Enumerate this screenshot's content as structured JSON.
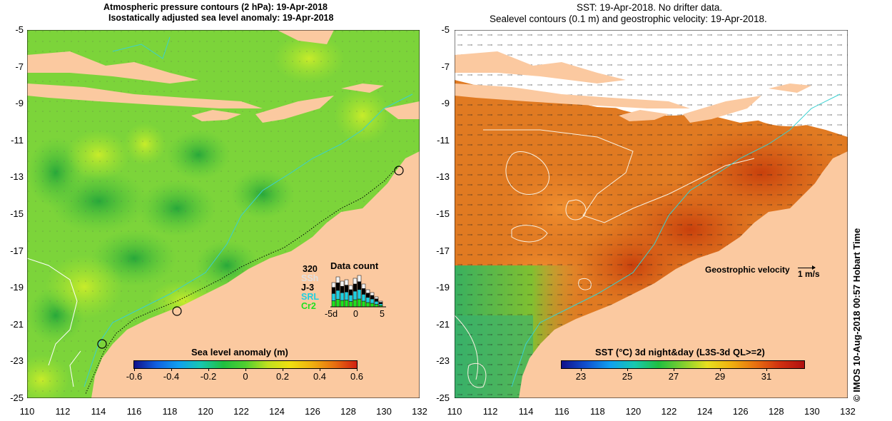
{
  "left": {
    "title_line1": "Atmospheric pressure contours (2 hPa): 19-Apr-2018",
    "title_line2": "Isostatically adjusted sea level anomaly: 19-Apr-2018",
    "colorbar_title": "Sea level anomaly (m)",
    "colorbar_ticks": [
      "-0.6",
      "-0.4",
      "-0.2",
      "0",
      "0.2",
      "0.4",
      "0.6"
    ],
    "data_count": {
      "title": "Data count",
      "max_label": "320",
      "legend": [
        "SSh",
        "J-3",
        "SRL",
        "Cr2"
      ],
      "legend_colors": [
        "#e0e0e0",
        "#000000",
        "#20d0e0",
        "#20e020"
      ],
      "x_ticks": [
        "-5d",
        "0",
        "5"
      ]
    }
  },
  "right": {
    "title_line1": "SST: 19-Apr-2018. No drifter data.",
    "title_line2": "Sealevel contours (0.1 m) and geostrophic velocity: 19-Apr-2018.",
    "colorbar_title": "SST (°C) 3d night&day (L3S-3d QL>=2)",
    "colorbar_ticks": [
      "23",
      "25",
      "27",
      "29",
      "31"
    ],
    "velocity_label": "Geostrophic velocity",
    "velocity_unit": "1 m/s"
  },
  "axes": {
    "y_ticks": [
      "-5",
      "-7",
      "-9",
      "-11",
      "-13",
      "-15",
      "-17",
      "-19",
      "-21",
      "-23",
      "-25"
    ],
    "x_ticks": [
      "110",
      "112",
      "114",
      "116",
      "118",
      "120",
      "122",
      "124",
      "126",
      "128",
      "130",
      "132"
    ]
  },
  "footer": "© IMOS 10-Aug-2018 00:57 Hobart Time",
  "colors": {
    "land": "#fbc9a0",
    "ocean_green": "#78d23c",
    "sst_orange": "#e07820",
    "sst_red": "#c04010"
  }
}
